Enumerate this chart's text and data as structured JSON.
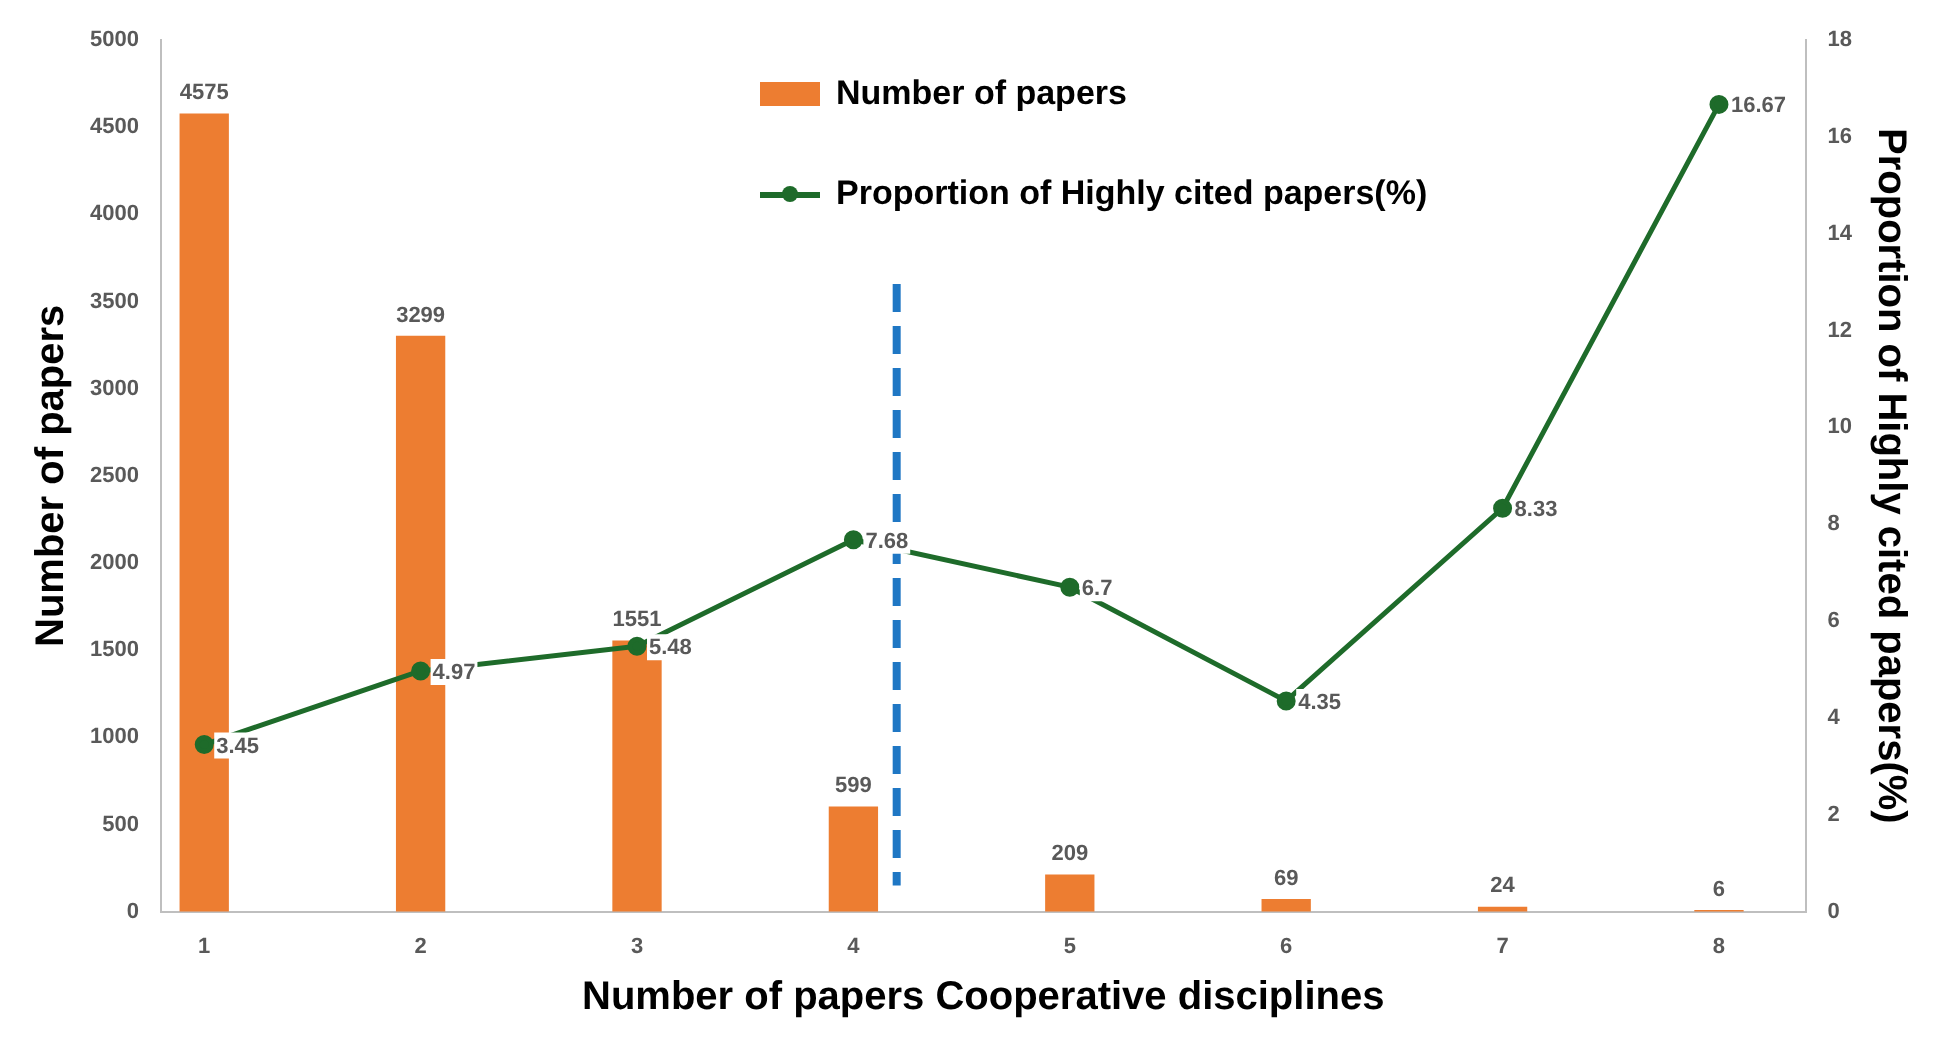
{
  "chart_data": {
    "type": "bar",
    "xlabel": "Number of papers Cooperative disciplines",
    "ylabel": "Number of papers",
    "y2label": "Proportion of Highly cited papers(%)",
    "x": [
      1,
      2,
      3,
      4,
      5,
      6,
      7,
      8
    ],
    "xlim": [
      0.8,
      8.4
    ],
    "xticks": [
      1,
      2,
      3,
      4,
      5,
      6,
      7,
      8
    ],
    "ylim": [
      0,
      5000
    ],
    "yticks": [
      0,
      500,
      1000,
      1500,
      2000,
      2500,
      3000,
      3500,
      4000,
      4500,
      5000
    ],
    "y2lim": [
      0,
      18
    ],
    "y2ticks": [
      0,
      2,
      4,
      6,
      8,
      10,
      12,
      14,
      16,
      18
    ],
    "series": [
      {
        "name": "Number of papers",
        "color": "#ed7d31",
        "values": [
          4575,
          3299,
          1551,
          599,
          209,
          69,
          24,
          6
        ]
      },
      {
        "name": "Proportion of Highly cited papers(%)",
        "type": "line",
        "axis": "y2",
        "color": "#1e6b2a",
        "marker": "circle",
        "values": [
          3.45,
          4.97,
          5.48,
          7.68,
          6.7,
          4.35,
          8.33,
          16.67
        ]
      }
    ],
    "ref_lines": [
      {
        "axis": "x",
        "value": 4.2,
        "color": "#1f77c4",
        "line_style": "dashed"
      }
    ],
    "data_labels": true,
    "legend": "top",
    "grid": false
  }
}
